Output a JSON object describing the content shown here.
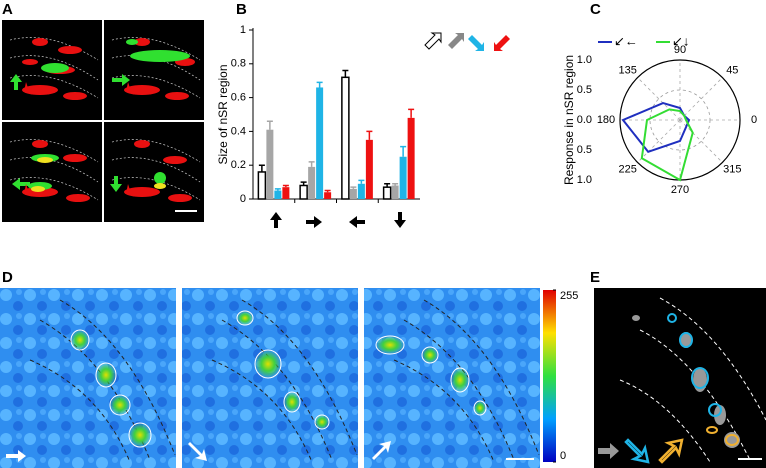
{
  "panels": [
    "A",
    "B",
    "C",
    "D",
    "E"
  ],
  "chart_data": [
    {
      "type": "bar",
      "ylabel": "Size of nSR region",
      "categories": [
        null,
        null,
        null,
        null
      ],
      "series": [
        {
          "color": "#ffffff",
          "values": [
            0.16,
            0.08,
            0.72,
            0.07
          ],
          "errors": [
            0.04,
            0.02,
            0.04,
            0.02
          ]
        },
        {
          "color": "#a6a6a6",
          "values": [
            0.41,
            0.19,
            0.06,
            0.08
          ],
          "errors": [
            0.05,
            0.03,
            0.01,
            0.01
          ]
        },
        {
          "color": "#1fb4e6",
          "values": [
            0.05,
            0.66,
            0.09,
            0.25
          ],
          "errors": [
            0.01,
            0.03,
            0.02,
            0.06
          ]
        },
        {
          "color": "#ee1111",
          "values": [
            0.07,
            0.04,
            0.35,
            0.48
          ],
          "errors": [
            0.01,
            0.01,
            0.05,
            0.05
          ]
        }
      ],
      "ylim": [
        0,
        1
      ],
      "yticks": [
        0,
        0.2,
        0.4,
        0.6,
        0.8,
        1
      ]
    },
    {
      "type": "polar",
      "ylabel": "Response in nSR region",
      "angles": [
        0,
        45,
        90,
        135,
        180,
        225,
        270,
        315
      ],
      "series": [
        {
          "color": "#1f2fbf",
          "values": [
            0.15,
            0.1,
            0.2,
            0.4,
            0.95,
            0.75,
            0.35,
            0.15
          ]
        },
        {
          "color": "#33dd33",
          "values": [
            0.1,
            0.1,
            0.15,
            0.25,
            0.55,
            0.9,
            1.0,
            0.3
          ]
        }
      ],
      "rlim": [
        0,
        1
      ],
      "rticks": [
        {
          "value": 1,
          "label": "1.0"
        },
        {
          "value": 0.5,
          "label": "0.5"
        },
        {
          "value": 0,
          "label": "0.0"
        }
      ]
    }
  ],
  "colorbar": {
    "ticks": [
      0,
      255
    ]
  }
}
